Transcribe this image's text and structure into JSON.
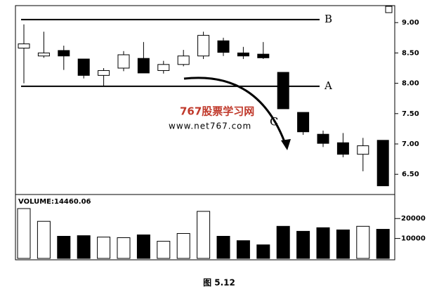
{
  "chart_data": {
    "type": "candlestick",
    "open": [
      8.58,
      8.45,
      8.54,
      8.4,
      8.13,
      8.25,
      8.41,
      8.21,
      8.31,
      8.45,
      8.7,
      8.5,
      8.48,
      8.18,
      7.52,
      7.16,
      7.02,
      6.83,
      7.06
    ],
    "high": [
      8.97,
      8.85,
      8.62,
      8.4,
      8.25,
      8.53,
      8.68,
      8.37,
      8.55,
      8.85,
      8.75,
      8.6,
      8.68,
      8.18,
      7.52,
      7.22,
      7.18,
      7.1,
      7.06
    ],
    "low": [
      8.0,
      8.42,
      8.22,
      8.08,
      7.95,
      8.2,
      8.17,
      8.16,
      8.28,
      8.4,
      8.45,
      8.4,
      8.4,
      7.58,
      7.15,
      6.95,
      6.78,
      6.55,
      6.31
    ],
    "close": [
      8.65,
      8.5,
      8.45,
      8.13,
      8.21,
      8.47,
      8.17,
      8.31,
      8.45,
      8.79,
      8.51,
      8.45,
      8.42,
      7.58,
      7.2,
      7.01,
      6.83,
      6.97,
      6.31
    ],
    "ylim": [
      6.19,
      9.28
    ],
    "yticks": [
      {
        "value": 9,
        "label": "9.00"
      },
      {
        "value": 8.5,
        "label": "8.50"
      },
      {
        "value": 8,
        "label": "8.00"
      },
      {
        "value": 7.5,
        "label": "7.50"
      },
      {
        "value": 7,
        "label": "7.00"
      },
      {
        "value": 6.5,
        "label": "6.50"
      }
    ],
    "reference_lines": [
      {
        "label": "B",
        "value": 9.05
      },
      {
        "label": "A",
        "value": 7.95
      }
    ],
    "annotation": "C",
    "watermark": {
      "title": "767股票学习网",
      "url": "www.net767.com"
    },
    "volume": {
      "label": "VOLUME:14460.06",
      "values": [
        25000,
        18600,
        11100,
        11400,
        10700,
        10400,
        11800,
        8600,
        12500,
        23600,
        11100,
        8900,
        6800,
        16100,
        13600,
        15400,
        14300,
        16100,
        14600
      ],
      "ylim": [
        0,
        31000
      ],
      "yticks": [
        20000,
        10000
      ]
    },
    "caption": "图 5.12"
  }
}
